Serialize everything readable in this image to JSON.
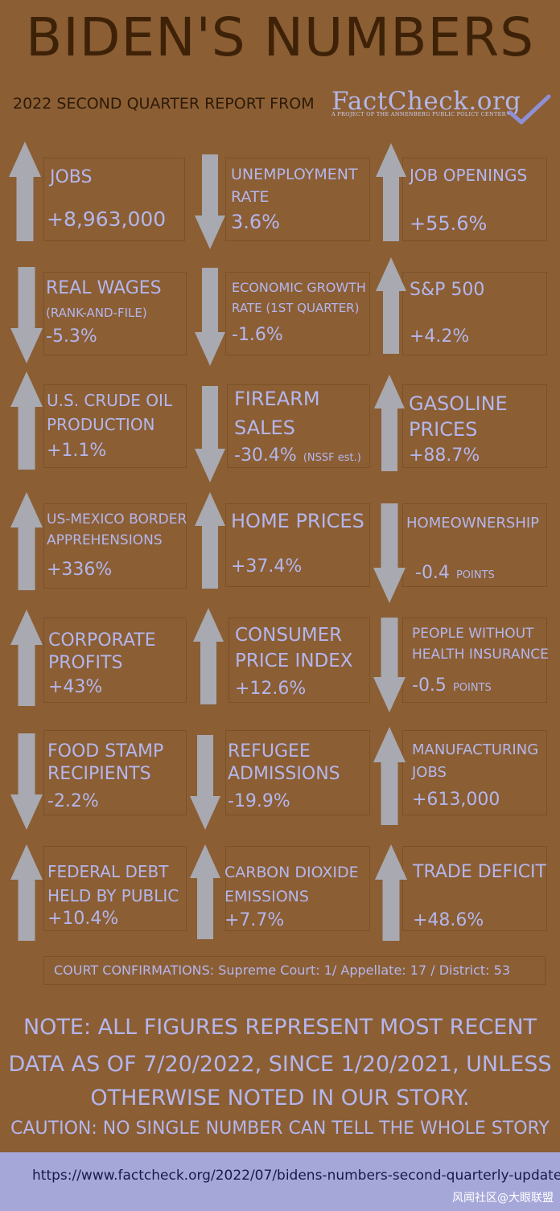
{
  "header": {
    "title": "BIDEN'S NUMBERS",
    "subtitle": "2022 SECOND QUARTER REPORT FROM",
    "logo_text": "FactCheck.org",
    "logo_tagline": "A PROJECT OF THE ANNENBERG PUBLIC POLICY CENTER"
  },
  "colors": {
    "background": "#8b5e34",
    "arrow": "#a8a9b1",
    "text": "#b4b6ec",
    "title": "#3e2208",
    "footer": "#a6a7d9"
  },
  "metrics": [
    {
      "label": "JOBS",
      "value": "+8,963,000",
      "direction": "up"
    },
    {
      "label": "UNEMPLOYMENT",
      "label2": "RATE",
      "value": "3.6%",
      "direction": "down"
    },
    {
      "label": "JOB OPENINGS",
      "value": "+55.6%",
      "direction": "up"
    },
    {
      "label": "REAL WAGES",
      "label2": "(RANK-AND-FILE)",
      "value": "-5.3%",
      "direction": "down"
    },
    {
      "label": "ECONOMIC GROWTH",
      "label2": "RATE (1ST QUARTER)",
      "value": "-1.6%",
      "direction": "down"
    },
    {
      "label": "S&P 500",
      "value": "+4.2%",
      "direction": "up"
    },
    {
      "label": "U.S. CRUDE OIL",
      "label2": "PRODUCTION",
      "value": "+1.1%",
      "direction": "up"
    },
    {
      "label": "FIREARM",
      "label2": "SALES",
      "value": "-30.4%",
      "note": "(NSSF est.)",
      "direction": "down"
    },
    {
      "label": "GASOLINE",
      "label2": "PRICES",
      "value": "+88.7%",
      "direction": "up"
    },
    {
      "label": "US-MEXICO BORDER",
      "label2": "APPREHENSIONS",
      "value": "+336%",
      "direction": "up"
    },
    {
      "label": "HOME PRICES",
      "value": "+37.4%",
      "direction": "up"
    },
    {
      "label": "HOMEOWNERSHIP",
      "value": "-0.4",
      "note": "POINTS",
      "direction": "down"
    },
    {
      "label": "CORPORATE",
      "label2": "PROFITS",
      "value": "+43%",
      "direction": "up"
    },
    {
      "label": "CONSUMER",
      "label2": "PRICE INDEX",
      "value": "+12.6%",
      "direction": "up"
    },
    {
      "label": "PEOPLE WITHOUT",
      "label2": "HEALTH INSURANCE",
      "value": "-0.5",
      "note": "POINTS",
      "direction": "down"
    },
    {
      "label": "FOOD STAMP",
      "label2": "RECIPIENTS",
      "value": "-2.2%",
      "direction": "down"
    },
    {
      "label": "REFUGEE",
      "label2": "ADMISSIONS",
      "value": "-19.9%",
      "direction": "down"
    },
    {
      "label": "MANUFACTURING",
      "label2": "JOBS",
      "value": "+613,000",
      "direction": "up"
    },
    {
      "label": "FEDERAL DEBT",
      "label2": "HELD BY PUBLIC",
      "value": "+10.4%",
      "direction": "up"
    },
    {
      "label": "CARBON DIOXIDE",
      "label2": "EMISSIONS",
      "value": "+7.7%",
      "direction": "up"
    },
    {
      "label": "TRADE DEFICIT",
      "value": "+48.6%",
      "direction": "up"
    }
  ],
  "court": "COURT CONFIRMATIONS:  Supreme Court: 1/ Appellate: 17 / District: 53",
  "note": {
    "line1": "NOTE:  ALL FIGURES REPRESENT MOST RECENT",
    "line2": "DATA AS OF 7/20/2022, SINCE 1/20/2021, UNLESS",
    "line3": "OTHERWISE NOTED IN OUR STORY.",
    "caution": "CAUTION: NO SINGLE NUMBER CAN TELL THE WHOLE STORY"
  },
  "footer": {
    "url": "https://www.factcheck.org/2022/07/bidens-numbers-second-quarterly-update",
    "watermark": "风闻社区@大眼联盟"
  }
}
